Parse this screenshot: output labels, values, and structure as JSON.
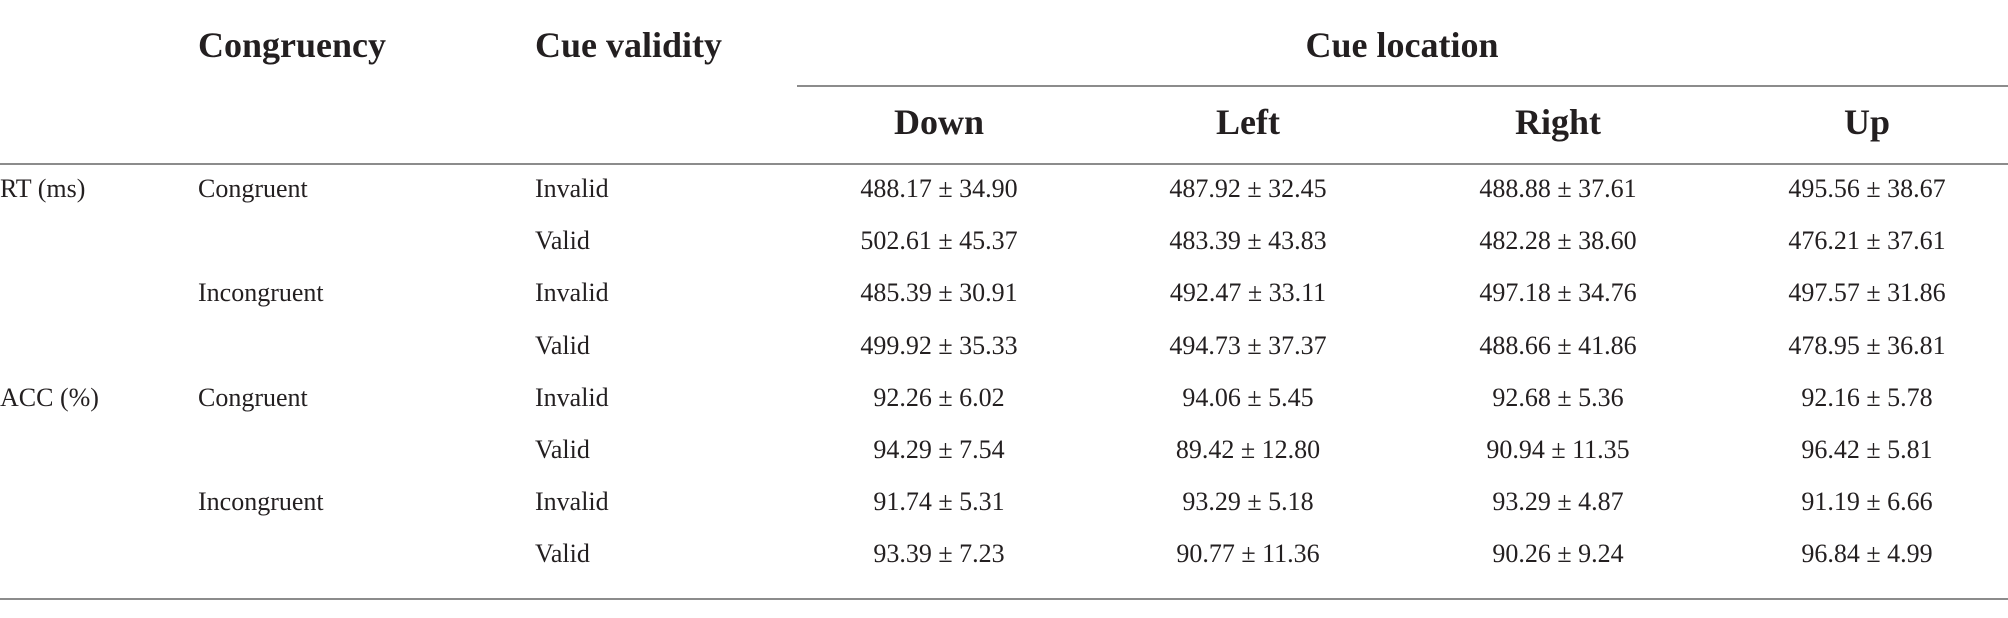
{
  "header": {
    "congruency": "Congruency",
    "cue_validity": "Cue validity",
    "cue_location": "Cue location",
    "locations": [
      "Down",
      "Left",
      "Right",
      "Up"
    ]
  },
  "rows": [
    {
      "measure": "RT (ms)",
      "congruency": "Congruent",
      "validity": "Invalid",
      "values": [
        "488.17 ± 34.90",
        "487.92 ± 32.45",
        "488.88 ± 37.61",
        "495.56 ± 38.67"
      ]
    },
    {
      "measure": "",
      "congruency": "",
      "validity": "Valid",
      "values": [
        "502.61 ± 45.37",
        "483.39 ± 43.83",
        "482.28 ± 38.60",
        "476.21 ± 37.61"
      ]
    },
    {
      "measure": "",
      "congruency": "Incongruent",
      "validity": "Invalid",
      "values": [
        "485.39 ± 30.91",
        "492.47 ± 33.11",
        "497.18 ± 34.76",
        "497.57 ± 31.86"
      ]
    },
    {
      "measure": "",
      "congruency": "",
      "validity": "Valid",
      "values": [
        "499.92 ± 35.33",
        "494.73 ± 37.37",
        "488.66 ± 41.86",
        "478.95 ± 36.81"
      ]
    },
    {
      "measure": "ACC (%)",
      "congruency": "Congruent",
      "validity": "Invalid",
      "values": [
        "92.26 ± 6.02",
        "94.06 ± 5.45",
        "92.68 ± 5.36",
        "92.16 ± 5.78"
      ]
    },
    {
      "measure": "",
      "congruency": "",
      "validity": "Valid",
      "values": [
        "94.29 ± 7.54",
        "89.42 ± 12.80",
        "90.94 ± 11.35",
        "96.42 ± 5.81"
      ]
    },
    {
      "measure": "",
      "congruency": "Incongruent",
      "validity": "Invalid",
      "values": [
        "91.74 ± 5.31",
        "93.29 ± 5.18",
        "93.29 ± 4.87",
        "91.19 ± 6.66"
      ]
    },
    {
      "measure": "",
      "congruency": "",
      "validity": "Valid",
      "values": [
        "93.39 ± 7.23",
        "90.77 ± 11.36",
        "90.26 ± 9.24",
        "96.84 ± 4.99"
      ]
    }
  ]
}
